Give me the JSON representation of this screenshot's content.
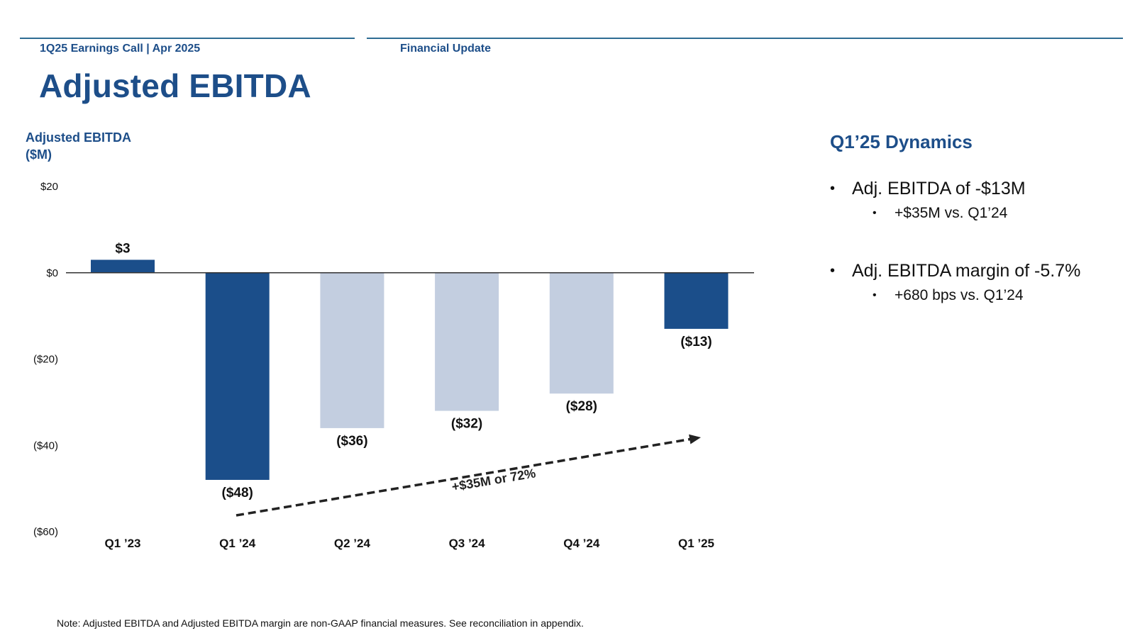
{
  "header": {
    "left": "1Q25 Earnings Call | Apr 2025",
    "right": "Financial Update"
  },
  "title": "Adjusted EBITDA",
  "chart_label": {
    "line1": "Adjusted EBITDA",
    "line2": "($M)"
  },
  "chart_data": {
    "type": "bar",
    "title": "Adjusted EBITDA ($M)",
    "categories": [
      "Q1 ’23",
      "Q1 ’24",
      "Q2 ’24",
      "Q3 ’24",
      "Q4 ’24",
      "Q1 ’25"
    ],
    "values": [
      3,
      -48,
      -36,
      -32,
      -28,
      -13
    ],
    "data_labels": [
      "$3",
      "($48)",
      "($36)",
      "($32)",
      "($28)",
      "($13)"
    ],
    "highlighted": [
      true,
      true,
      false,
      false,
      false,
      true
    ],
    "ylim": [
      -60,
      20
    ],
    "yticks": [
      20,
      0,
      -20,
      -40,
      -60
    ],
    "ytick_labels": [
      "$20",
      "$0",
      "($20)",
      "($40)",
      "($60)"
    ],
    "annotation": "+$35M or 72%",
    "colors": {
      "highlight": "#1b4e8a",
      "muted": "#c3cee0",
      "axis": "#333333",
      "arrow": "#222222"
    },
    "grid": false
  },
  "dynamics": {
    "title": "Q1’25 Dynamics",
    "items": [
      {
        "text": "Adj. EBITDA of -$13M",
        "sub": "+$35M vs. Q1’24"
      },
      {
        "text": "Adj. EBITDA margin of -5.7%",
        "sub": "+680 bps vs. Q1’24"
      }
    ]
  },
  "footnote": "Note: Adjusted EBITDA and Adjusted EBITDA margin are non-GAAP financial measures. See reconciliation in appendix.",
  "colors": {
    "brand": "#1d4e89",
    "rule": "#2e6d93",
    "text": "#111111"
  }
}
